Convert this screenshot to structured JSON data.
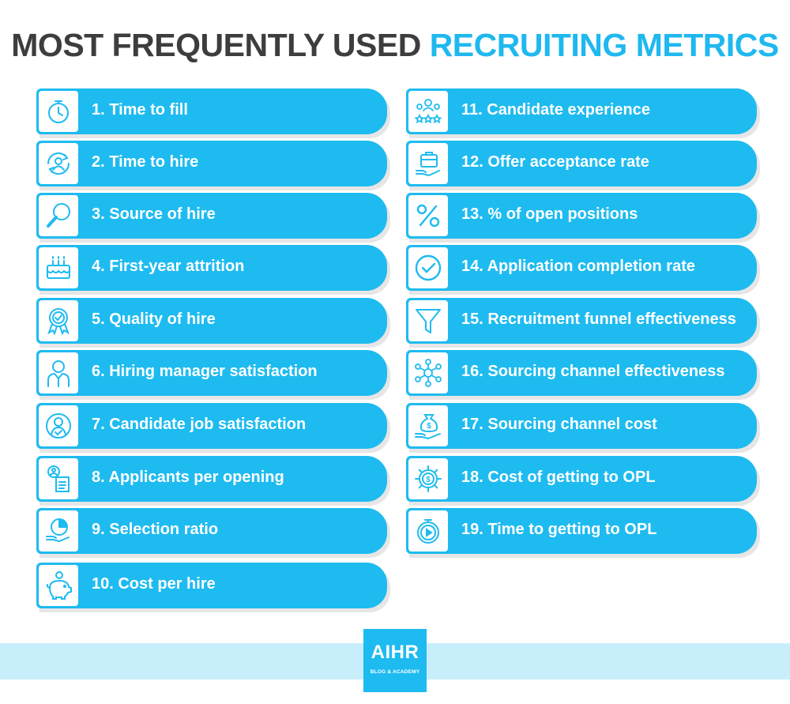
{
  "header": {
    "title_dark": "MOST FREQUENTLY USED",
    "title_blue": "RECRUITING METRICS"
  },
  "left_metrics": [
    {
      "label": "1. Time to fill",
      "icon": "stopwatch-icon"
    },
    {
      "label": "2. Time to hire",
      "icon": "person-cycle-icon"
    },
    {
      "label": "3. Source of hire",
      "icon": "magnifier-icon"
    },
    {
      "label": "4. First-year attrition",
      "icon": "birthday-cake-icon"
    },
    {
      "label": "5. Quality of hire",
      "icon": "award-badge-icon"
    },
    {
      "label": "6. Hiring manager satisfaction",
      "icon": "manager-icon"
    },
    {
      "label": "7. Candidate job satisfaction",
      "icon": "user-check-icon"
    },
    {
      "label": "8. Applicants per opening",
      "icon": "applicant-document-icon"
    },
    {
      "label": "9. Selection ratio",
      "icon": "pie-chart-hand-icon"
    },
    {
      "label": "10. Cost per hire",
      "icon": "piggy-bank-icon"
    }
  ],
  "right_metrics": [
    {
      "label": "11. Candidate experience",
      "icon": "people-stars-icon"
    },
    {
      "label": "12. Offer acceptance rate",
      "icon": "briefcase-hand-icon"
    },
    {
      "label": "13. % of open positions",
      "icon": "percent-icon"
    },
    {
      "label": "14. Application completion rate",
      "icon": "check-circle-icon"
    },
    {
      "label": "15. Recruitment funnel effectiveness",
      "icon": "funnel-icon"
    },
    {
      "label": "16. Sourcing channel effectiveness",
      "icon": "network-hub-icon"
    },
    {
      "label": "17. Sourcing channel cost",
      "icon": "money-bag-hand-icon"
    },
    {
      "label": "18. Cost of getting to OPL",
      "icon": "dollar-gear-icon"
    },
    {
      "label": "19. Time to getting to OPL",
      "icon": "stopwatch-play-icon"
    }
  ],
  "footer": {
    "logo_text": "AIHR",
    "logo_subtext": "BLOG & ACADEMY"
  },
  "colors": {
    "accent": "#1ebbf0",
    "title_dark": "#3d3d3d",
    "footer_band": "#c9eefb"
  }
}
